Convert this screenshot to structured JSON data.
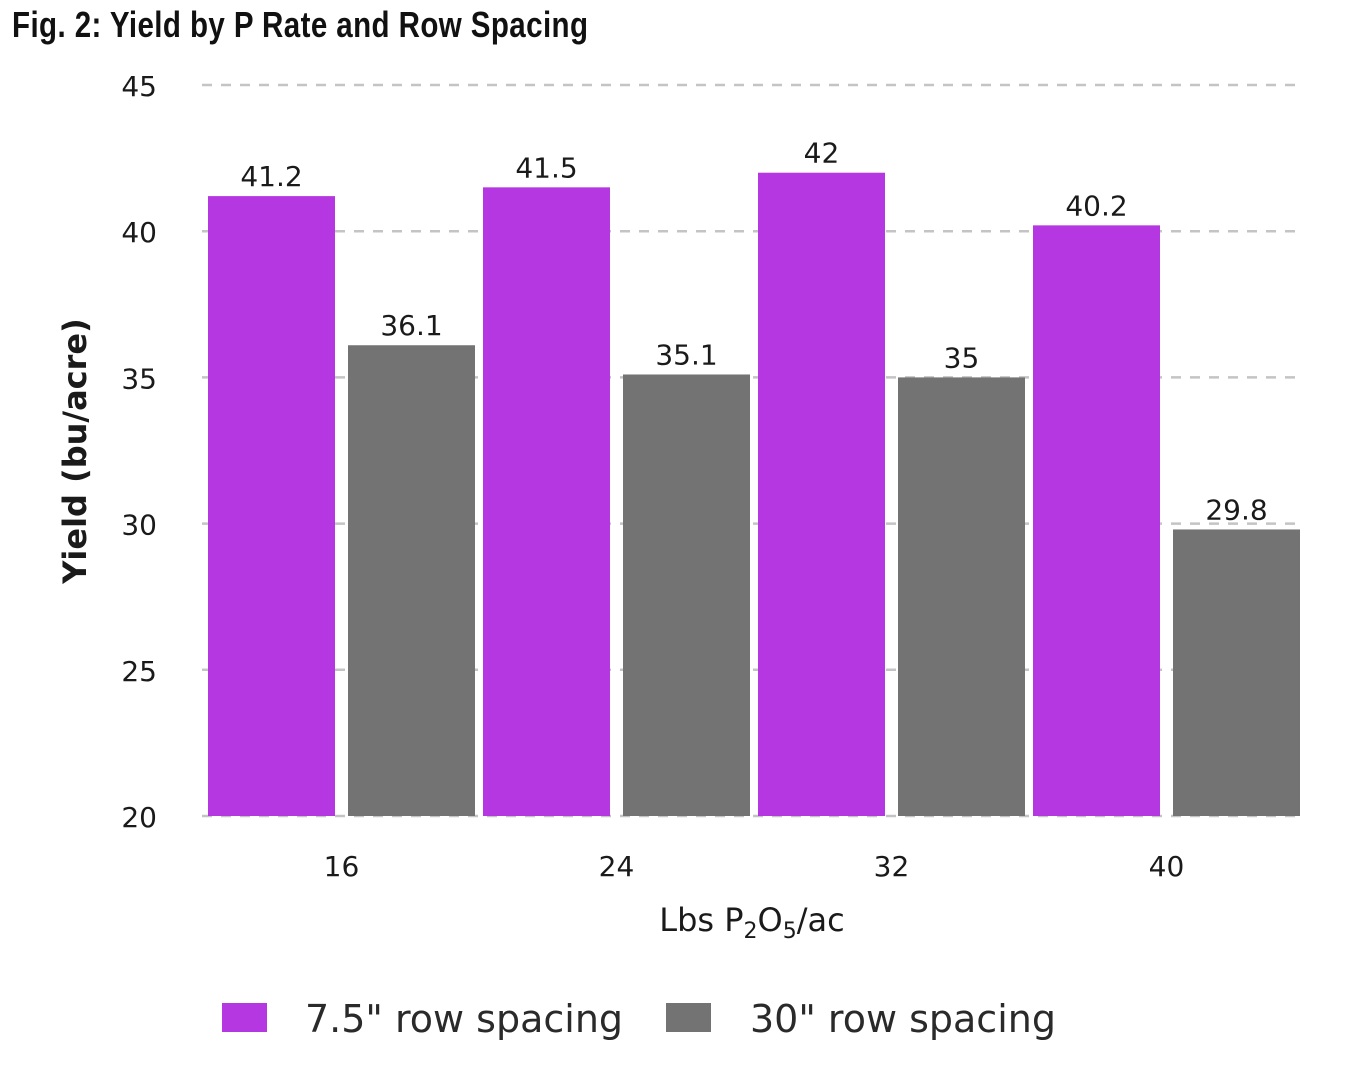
{
  "title": "Fig. 2: Yield by P Rate and Row Spacing",
  "chart_data": {
    "type": "bar",
    "title": "Fig. 2: Yield by P Rate and Row Spacing",
    "categories": [
      "16",
      "24",
      "32",
      "40"
    ],
    "series": [
      {
        "name": "7.5\" row spacing",
        "color": "#b537e2",
        "values": [
          41.2,
          41.5,
          42,
          40.2
        ]
      },
      {
        "name": "30\" row spacing",
        "color": "#737373",
        "values": [
          36.1,
          35.1,
          35,
          29.8
        ]
      }
    ],
    "data_labels": [
      [
        "41.2",
        "41.5",
        "42",
        "40.2"
      ],
      [
        "36.1",
        "35.1",
        "35",
        "29.8"
      ]
    ],
    "xlabel": {
      "prefix": "Lbs P",
      "sub1": "2",
      "mid": "O",
      "sub2": "5",
      "suffix": "/ac"
    },
    "ylabel": "Yield (bu/acre)",
    "ylim": [
      20,
      45
    ],
    "yticks": [
      20,
      25,
      30,
      35,
      40,
      45
    ],
    "grid": true,
    "grid_style": "dashed",
    "legend_position": "bottom"
  }
}
